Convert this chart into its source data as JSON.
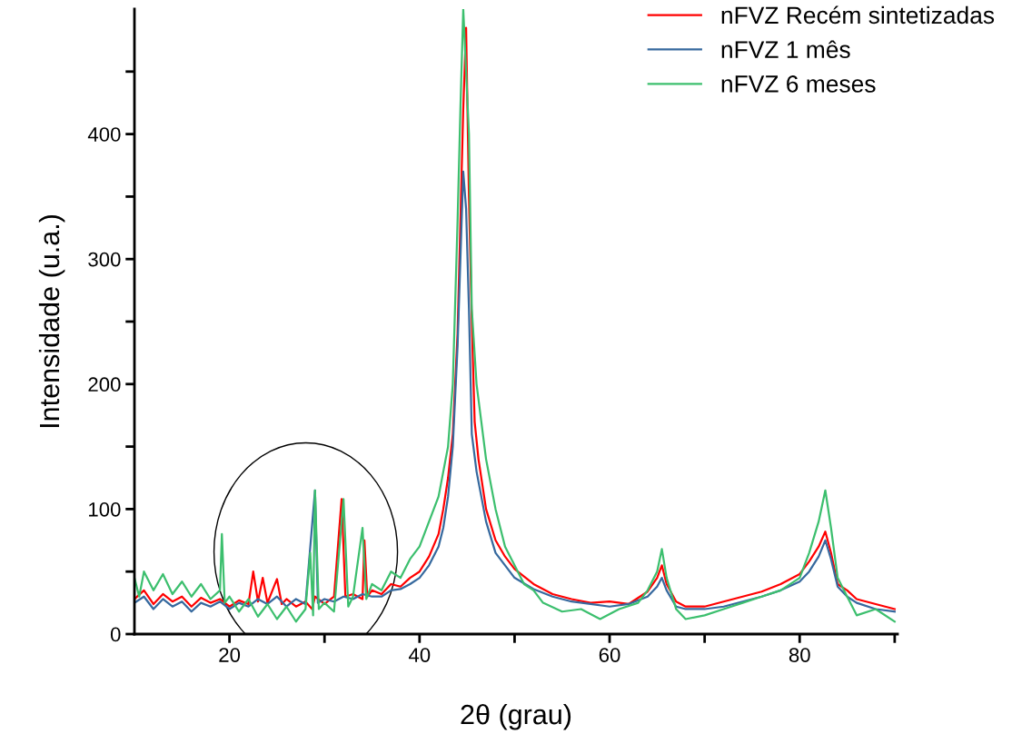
{
  "chart_data": {
    "type": "line",
    "xlabel": "2θ (grau)",
    "ylabel": "Intensidade (u.a.)",
    "xlim": [
      10,
      90.3
    ],
    "ylim": [
      0,
      500
    ],
    "xticks": [
      20,
      {
        "value": 30,
        "label": null
      },
      40,
      {
        "value": 50,
        "label": null
      },
      60,
      {
        "value": 70,
        "label": null
      },
      80,
      {
        "value": 90,
        "label": null
      }
    ],
    "yticks": [
      0,
      {
        "value": 50,
        "label": null
      },
      100,
      {
        "value": 150,
        "label": null
      },
      200,
      {
        "value": 250,
        "label": null
      },
      300,
      {
        "value": 350,
        "label": null
      },
      400,
      {
        "value": 450,
        "label": null
      }
    ],
    "grid": false,
    "legend": "top right",
    "marker": "none",
    "line_style": "solid",
    "series": [
      {
        "name": "nFVZ Recém sintetizadas",
        "color": "#ff0000",
        "x": [
          10,
          11,
          12,
          13,
          14,
          15,
          16,
          17,
          18,
          19,
          20,
          21,
          22,
          22.5,
          23,
          23.5,
          24,
          25,
          25.5,
          26,
          27,
          28,
          28.7,
          29,
          30,
          31,
          31.8,
          32.2,
          33,
          34,
          34.2,
          34.5,
          35,
          36,
          37,
          38,
          39,
          40,
          41,
          42,
          42.5,
          43,
          43.5,
          44,
          44.3,
          44.6,
          44.9,
          45.2,
          45.5,
          45.8,
          46.2,
          47,
          48,
          49,
          50,
          52,
          54,
          56,
          58,
          60,
          62,
          64,
          65,
          65.5,
          66,
          67,
          68,
          70,
          72,
          74,
          76,
          78,
          80,
          81,
          82,
          82.7,
          83.3,
          84,
          85,
          86,
          88,
          90
        ],
        "values": [
          28,
          35,
          24,
          32,
          26,
          30,
          22,
          29,
          25,
          28,
          22,
          27,
          24,
          50,
          26,
          45,
          25,
          44,
          24,
          28,
          22,
          26,
          20,
          30,
          24,
          30,
          108,
          30,
          32,
          28,
          75,
          30,
          35,
          32,
          40,
          38,
          45,
          50,
          62,
          80,
          100,
          125,
          160,
          240,
          330,
          420,
          485,
          350,
          250,
          170,
          140,
          100,
          75,
          62,
          52,
          40,
          32,
          28,
          25,
          26,
          24,
          34,
          45,
          55,
          40,
          26,
          22,
          22,
          26,
          30,
          34,
          40,
          48,
          58,
          70,
          82,
          65,
          40,
          35,
          28,
          24,
          20
        ]
      },
      {
        "name": "nFVZ 1 mês",
        "color": "#36699e",
        "x": [
          10,
          11,
          12,
          13,
          14,
          15,
          16,
          17,
          18,
          19,
          20,
          21,
          22,
          23,
          24,
          25,
          26,
          27,
          28,
          29,
          29.3,
          30,
          31,
          32,
          33,
          34,
          35,
          36,
          37,
          38,
          39,
          40,
          41,
          42,
          42.5,
          43,
          43.5,
          44,
          44.3,
          44.6,
          44.9,
          45.2,
          45.5,
          46,
          47,
          48,
          49,
          50,
          52,
          54,
          56,
          58,
          60,
          62,
          64,
          65,
          65.5,
          66,
          67,
          68,
          70,
          72,
          74,
          76,
          78,
          80,
          81,
          82,
          82.7,
          83.3,
          84,
          85,
          86,
          88,
          90
        ],
        "values": [
          25,
          30,
          20,
          28,
          22,
          26,
          18,
          25,
          22,
          26,
          20,
          25,
          22,
          28,
          24,
          30,
          22,
          28,
          24,
          115,
          25,
          28,
          26,
          30,
          28,
          32,
          30,
          30,
          35,
          36,
          40,
          45,
          55,
          70,
          85,
          110,
          150,
          230,
          300,
          370,
          340,
          260,
          160,
          130,
          90,
          65,
          55,
          45,
          36,
          30,
          26,
          24,
          22,
          24,
          30,
          38,
          45,
          35,
          22,
          20,
          20,
          22,
          26,
          30,
          35,
          42,
          50,
          62,
          75,
          60,
          38,
          30,
          25,
          20,
          18
        ]
      },
      {
        "name": "nFVZ 6 meses",
        "color": "#3cbf6e",
        "x": [
          10,
          10.5,
          11,
          12,
          13,
          14,
          15,
          16,
          17,
          18,
          19,
          19.2,
          19.5,
          20,
          21,
          22,
          23,
          24,
          25,
          26,
          27,
          28,
          28.5,
          28.8,
          29,
          29.4,
          30,
          31,
          32,
          32.5,
          33,
          34,
          34.4,
          35,
          36,
          37,
          38,
          39,
          40,
          41,
          42,
          42.5,
          43,
          43.5,
          44,
          44.3,
          44.6,
          44.9,
          45.2,
          45.5,
          46,
          46.5,
          47,
          48,
          49,
          50,
          51,
          52,
          53,
          55,
          57,
          59,
          61,
          63,
          64,
          65,
          65.5,
          66,
          67,
          68,
          70,
          72,
          74,
          76,
          78,
          80,
          81,
          82,
          82.7,
          83.3,
          84,
          85,
          86,
          88,
          90
        ],
        "values": [
          45,
          30,
          50,
          35,
          48,
          32,
          42,
          30,
          40,
          28,
          35,
          80,
          25,
          30,
          18,
          28,
          14,
          24,
          12,
          22,
          10,
          20,
          65,
          15,
          115,
          20,
          25,
          18,
          108,
          22,
          30,
          85,
          28,
          40,
          35,
          50,
          45,
          60,
          70,
          90,
          110,
          130,
          150,
          200,
          330,
          420,
          500,
          450,
          400,
          260,
          200,
          170,
          140,
          100,
          70,
          55,
          40,
          35,
          25,
          18,
          20,
          12,
          20,
          25,
          35,
          50,
          68,
          45,
          20,
          12,
          15,
          20,
          25,
          30,
          35,
          45,
          65,
          90,
          115,
          85,
          45,
          30,
          15,
          20,
          10
        ]
      }
    ]
  }
}
